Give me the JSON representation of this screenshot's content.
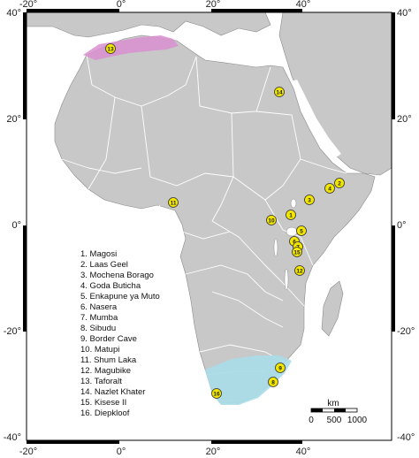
{
  "axes": {
    "top_lon_labels": [
      "-20°",
      "0°",
      "20°",
      "40°"
    ],
    "bottom_lon_labels": [
      "-20°",
      "0°",
      "20°",
      "40°"
    ],
    "left_lat_labels": [
      "40°",
      "20°",
      "0°",
      "-20°",
      "-40°"
    ],
    "right_lat_labels": [
      "40°",
      "20°",
      "0°",
      "-20°",
      "-40°"
    ]
  },
  "sites": [
    {
      "num": "1",
      "name": "Magosi"
    },
    {
      "num": "2",
      "name": "Laas Geel"
    },
    {
      "num": "3",
      "name": "Mochena Borago"
    },
    {
      "num": "4",
      "name": "Goda Buticha"
    },
    {
      "num": "5",
      "name": "Enkapune ya Muto"
    },
    {
      "num": "6",
      "name": "Nasera"
    },
    {
      "num": "7",
      "name": "Mumba"
    },
    {
      "num": "8",
      "name": "Sibudu"
    },
    {
      "num": "9",
      "name": "Border Cave"
    },
    {
      "num": "10",
      "name": "Matupi"
    },
    {
      "num": "11",
      "name": "Shum Laka"
    },
    {
      "num": "12",
      "name": "Magubike"
    },
    {
      "num": "13",
      "name": "Taforalt"
    },
    {
      "num": "14",
      "name": "Nazlet Khater"
    },
    {
      "num": "15",
      "name": "Kisese II"
    },
    {
      "num": "16",
      "name": "Diepkloof"
    }
  ],
  "legend": {
    "items": [
      "1. Magosi",
      "2. Laas Geel",
      "3. Mochena Borago",
      "4. Goda Buticha",
      "5. Enkapune ya Muto",
      "6. Nasera",
      "7. Mumba",
      "8. Sibudu",
      "9. Border Cave",
      "10. Matupi",
      "11. Shum Laka",
      "12. Magubike",
      "13. Taforalt",
      "14. Nazlet Khater",
      "15. Kisese II",
      "16. Diepkloof"
    ]
  },
  "scale_bar": {
    "unit": "km",
    "labels": [
      "0",
      "500",
      "1000"
    ]
  },
  "colors": {
    "land": "#c8c8c8",
    "border": "#ffffff",
    "north_region": "#d98fd0",
    "south_region": "#a8dbe8",
    "site_marker": "#f2e600",
    "frame": "#000000"
  }
}
